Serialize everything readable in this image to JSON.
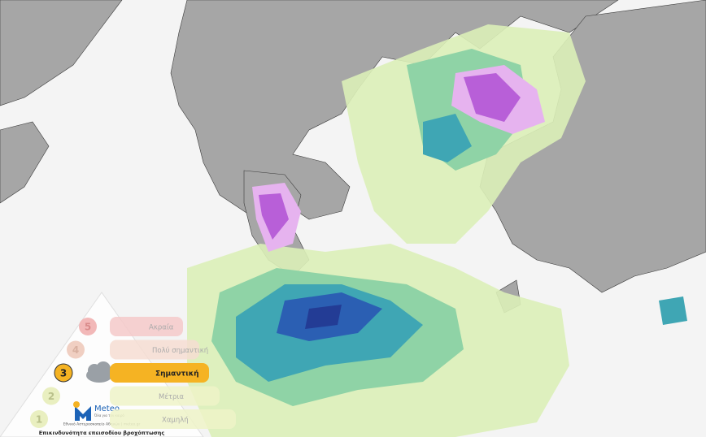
{
  "legend": {
    "levels": [
      {
        "number": 5,
        "label": "Ακραία"
      },
      {
        "number": 4,
        "label": "Πολύ σημαντική"
      },
      {
        "number": 3,
        "label": "Σημαντική"
      },
      {
        "number": 2,
        "label": "Μέτρια"
      },
      {
        "number": 1,
        "label": "Χαμηλή"
      }
    ],
    "caption": "Επικινδυνότητα επεισοδίου βροχόπτωσης"
  },
  "logo": {
    "name": "Meteo",
    "tagline": "Όλα για τον καιρό",
    "source": "Εθνικό Αστεροσκοπείο Αθηνών | meteo.gr"
  }
}
